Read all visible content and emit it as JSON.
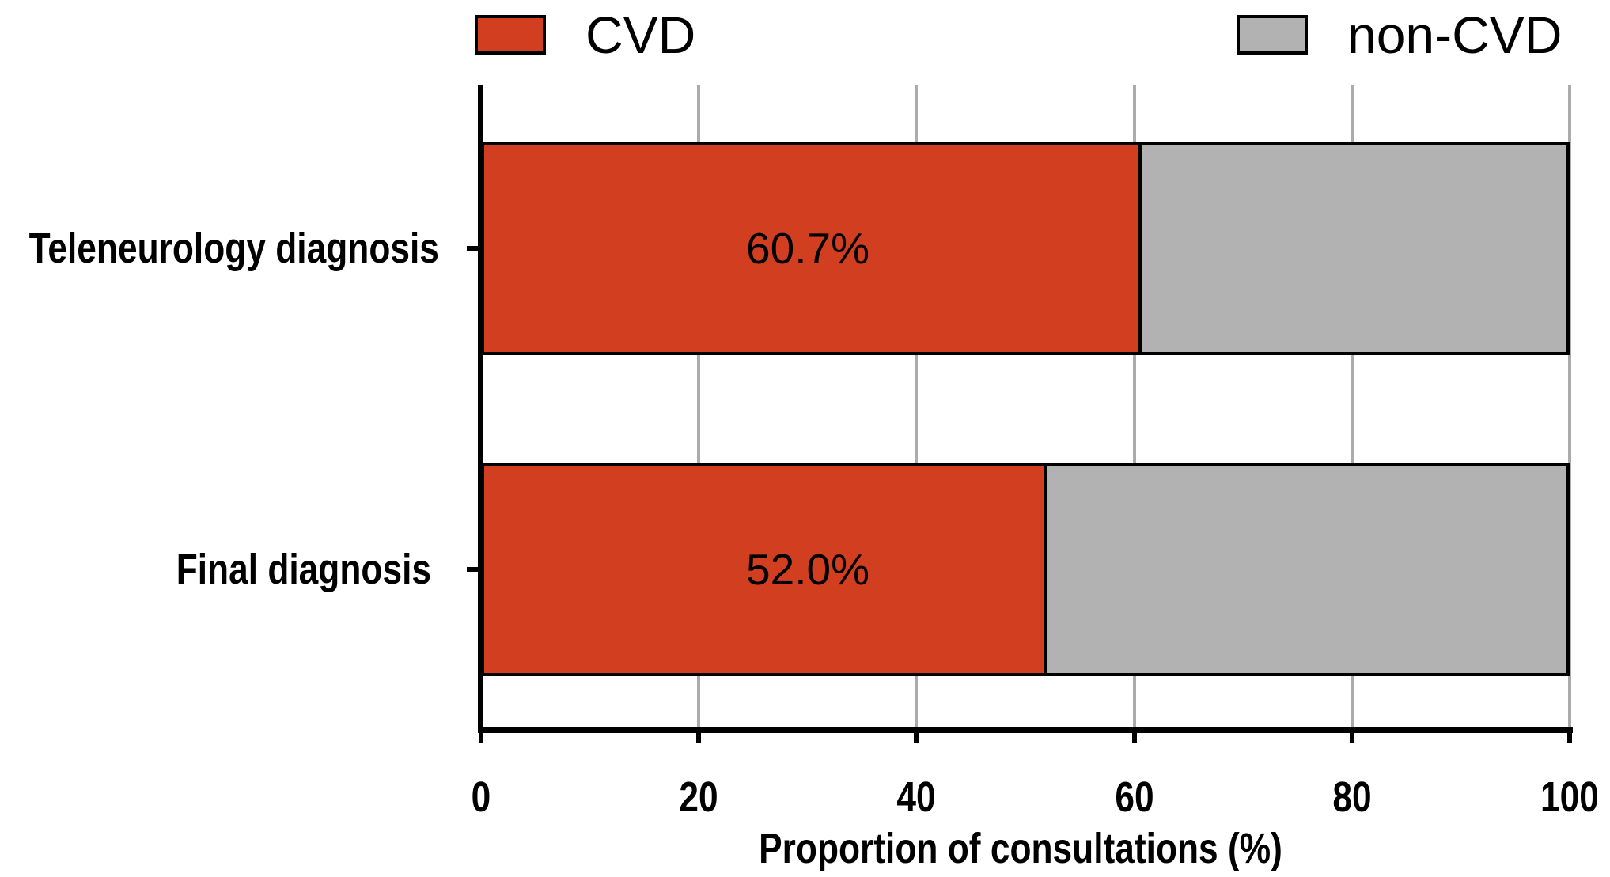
{
  "chart_data": {
    "type": "bar",
    "orientation": "horizontal",
    "stacked": true,
    "title": "",
    "xlabel": "Proportion of consultations (%)",
    "ylabel": "",
    "xlim": [
      0,
      100
    ],
    "xticks": [
      "0",
      "20",
      "40",
      "60",
      "80",
      "100"
    ],
    "grid": true,
    "grid_color": "#ababab",
    "legend_position": "top",
    "categories": [
      "Teleneurology diagnosis",
      "Final diagnosis"
    ],
    "series": [
      {
        "name": "CVD",
        "color": "#d23e20",
        "values": [
          60.7,
          52.0
        ]
      },
      {
        "name": "non-CVD",
        "color": "#b2b2b2",
        "values": [
          39.3,
          48.0
        ]
      }
    ],
    "bar_value_labels": [
      "60.7%",
      "52.0%"
    ]
  }
}
